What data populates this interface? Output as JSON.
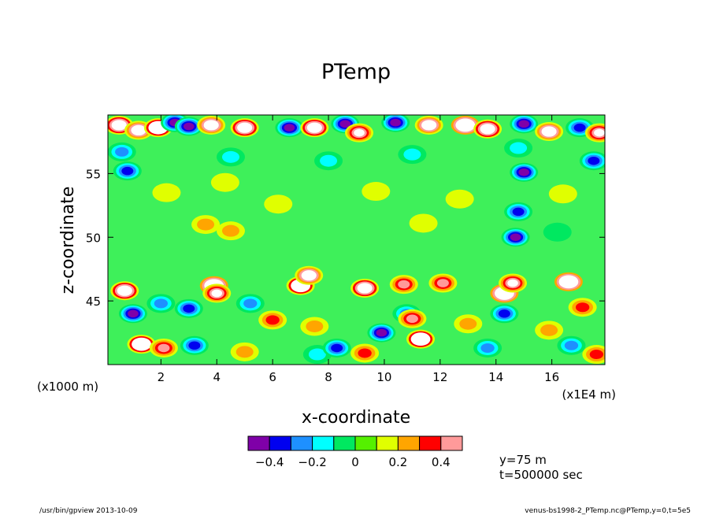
{
  "chart_data": {
    "type": "heatmap",
    "title": "PTemp",
    "xlabel": "x-coordinate",
    "ylabel": "z-coordinate",
    "x_unit_left": "(x1000 m)",
    "x_unit_right": "(x1E4 m)",
    "xlim": [
      0.1,
      17.9
    ],
    "ylim": [
      40,
      59.6
    ],
    "x_ticks": [
      2,
      4,
      6,
      8,
      10,
      12,
      14,
      16
    ],
    "x_tick_labels": [
      "2",
      "4",
      "6",
      "8",
      "10",
      "12",
      "14",
      "16"
    ],
    "y_ticks": [
      45,
      50,
      55
    ],
    "y_tick_labels": [
      "45",
      "50",
      "55"
    ],
    "colorbar": {
      "levels": [
        -0.5,
        -0.4,
        -0.3,
        -0.2,
        -0.1,
        0,
        0.1,
        0.2,
        0.3,
        0.4,
        0.5
      ],
      "colors": [
        "#7f00a8",
        "#0000f0",
        "#1e90ff",
        "#00ffff",
        "#00e860",
        "#55f000",
        "#e0ff00",
        "#ffa500",
        "#ff0000",
        "#ff9a9a"
      ],
      "tick_values": [
        -0.4,
        -0.2,
        0,
        0.2,
        0.4
      ],
      "tick_labels": [
        "−0.4",
        "−0.2",
        "0",
        "0.2",
        "0.4"
      ],
      "overflow_color": "#ffffff"
    },
    "features": [
      {
        "x": 0.5,
        "z": 58.8,
        "v": 0.8
      },
      {
        "x": 1.2,
        "z": 58.4,
        "v": 0.7
      },
      {
        "x": 1.9,
        "z": 58.6,
        "v": 0.9
      },
      {
        "x": 2.5,
        "z": 59.0,
        "v": -0.5
      },
      {
        "x": 3.0,
        "z": 58.7,
        "v": -0.5
      },
      {
        "x": 3.8,
        "z": 58.8,
        "v": 0.7
      },
      {
        "x": 5.0,
        "z": 58.6,
        "v": 0.8
      },
      {
        "x": 6.6,
        "z": 58.6,
        "v": -0.5
      },
      {
        "x": 7.5,
        "z": 58.6,
        "v": 0.8
      },
      {
        "x": 8.6,
        "z": 58.9,
        "v": -0.5
      },
      {
        "x": 9.1,
        "z": 58.2,
        "v": 0.6
      },
      {
        "x": 10.4,
        "z": 59.0,
        "v": -0.5
      },
      {
        "x": 11.6,
        "z": 58.8,
        "v": 0.7
      },
      {
        "x": 12.9,
        "z": 58.8,
        "v": 1.2
      },
      {
        "x": 13.7,
        "z": 58.5,
        "v": 0.8
      },
      {
        "x": 15.0,
        "z": 58.9,
        "v": -0.5
      },
      {
        "x": 15.9,
        "z": 58.3,
        "v": 0.7
      },
      {
        "x": 17.0,
        "z": 58.6,
        "v": -0.4
      },
      {
        "x": 17.7,
        "z": 58.2,
        "v": 0.6
      },
      {
        "x": 0.6,
        "z": 56.7,
        "v": -0.25
      },
      {
        "x": 4.5,
        "z": 56.3,
        "v": -0.2
      },
      {
        "x": 8.0,
        "z": 56.0,
        "v": -0.2
      },
      {
        "x": 11.0,
        "z": 56.5,
        "v": -0.2
      },
      {
        "x": 14.8,
        "z": 57.0,
        "v": -0.2
      },
      {
        "x": 0.8,
        "z": 55.2,
        "v": -0.4
      },
      {
        "x": 15.0,
        "z": 55.1,
        "v": -0.45
      },
      {
        "x": 17.5,
        "z": 56.0,
        "v": -0.35
      },
      {
        "x": 2.2,
        "z": 53.5,
        "v": 0.15
      },
      {
        "x": 4.3,
        "z": 54.3,
        "v": 0.15
      },
      {
        "x": 6.2,
        "z": 52.6,
        "v": 0.15
      },
      {
        "x": 9.7,
        "z": 53.6,
        "v": 0.15
      },
      {
        "x": 12.7,
        "z": 53.0,
        "v": 0.18
      },
      {
        "x": 16.4,
        "z": 53.4,
        "v": 0.15
      },
      {
        "x": 3.6,
        "z": 51.0,
        "v": 0.25
      },
      {
        "x": 4.5,
        "z": 50.5,
        "v": 0.2
      },
      {
        "x": 11.4,
        "z": 51.1,
        "v": 0.18
      },
      {
        "x": 14.7,
        "z": 50.0,
        "v": -0.5
      },
      {
        "x": 14.8,
        "z": 52.0,
        "v": -0.4
      },
      {
        "x": 16.2,
        "z": 50.4,
        "v": -0.1
      },
      {
        "x": 3.9,
        "z": 46.2,
        "v": 1.1
      },
      {
        "x": 4.0,
        "z": 45.6,
        "v": 0.55
      },
      {
        "x": 7.0,
        "z": 46.2,
        "v": 0.9
      },
      {
        "x": 7.3,
        "z": 47.0,
        "v": 0.7
      },
      {
        "x": 9.3,
        "z": 46.0,
        "v": 0.8
      },
      {
        "x": 10.7,
        "z": 46.3,
        "v": 0.45
      },
      {
        "x": 12.1,
        "z": 46.4,
        "v": 0.4
      },
      {
        "x": 14.3,
        "z": 45.6,
        "v": 1.0
      },
      {
        "x": 14.6,
        "z": 46.4,
        "v": 0.6
      },
      {
        "x": 16.6,
        "z": 46.5,
        "v": 1.0
      },
      {
        "x": 0.7,
        "z": 45.8,
        "v": 0.8
      },
      {
        "x": 1.0,
        "z": 44.0,
        "v": -0.5
      },
      {
        "x": 2.0,
        "z": 44.8,
        "v": -0.3
      },
      {
        "x": 3.0,
        "z": 44.4,
        "v": -0.4
      },
      {
        "x": 5.2,
        "z": 44.8,
        "v": -0.3
      },
      {
        "x": 6.0,
        "z": 43.5,
        "v": 0.3
      },
      {
        "x": 7.5,
        "z": 43.0,
        "v": 0.2
      },
      {
        "x": 9.9,
        "z": 42.5,
        "v": -0.45
      },
      {
        "x": 10.8,
        "z": 44.0,
        "v": -0.3
      },
      {
        "x": 11.0,
        "z": 43.6,
        "v": 0.4
      },
      {
        "x": 11.3,
        "z": 42.0,
        "v": 0.9
      },
      {
        "x": 13.0,
        "z": 43.2,
        "v": 0.25
      },
      {
        "x": 14.3,
        "z": 44.0,
        "v": -0.35
      },
      {
        "x": 15.9,
        "z": 42.7,
        "v": 0.25
      },
      {
        "x": 17.1,
        "z": 44.5,
        "v": 0.3
      },
      {
        "x": 1.3,
        "z": 41.6,
        "v": 0.9
      },
      {
        "x": 2.1,
        "z": 41.3,
        "v": 0.4
      },
      {
        "x": 3.2,
        "z": 41.5,
        "v": -0.4
      },
      {
        "x": 5.0,
        "z": 41.0,
        "v": 0.25
      },
      {
        "x": 7.6,
        "z": 40.8,
        "v": -0.2
      },
      {
        "x": 8.3,
        "z": 41.3,
        "v": -0.35
      },
      {
        "x": 9.3,
        "z": 40.9,
        "v": 0.3
      },
      {
        "x": 13.7,
        "z": 41.3,
        "v": -0.3
      },
      {
        "x": 16.7,
        "z": 41.5,
        "v": -0.25
      },
      {
        "x": 17.6,
        "z": 40.8,
        "v": 0.35
      }
    ]
  },
  "info": {
    "y_label": "y=75 m",
    "t_label": "t=500000 sec"
  },
  "footer": {
    "left": "/usr/bin/gpview  2013-10-09",
    "right": "venus-bs1998-2_PTemp.nc@PTemp,y=0,t=5e5"
  }
}
